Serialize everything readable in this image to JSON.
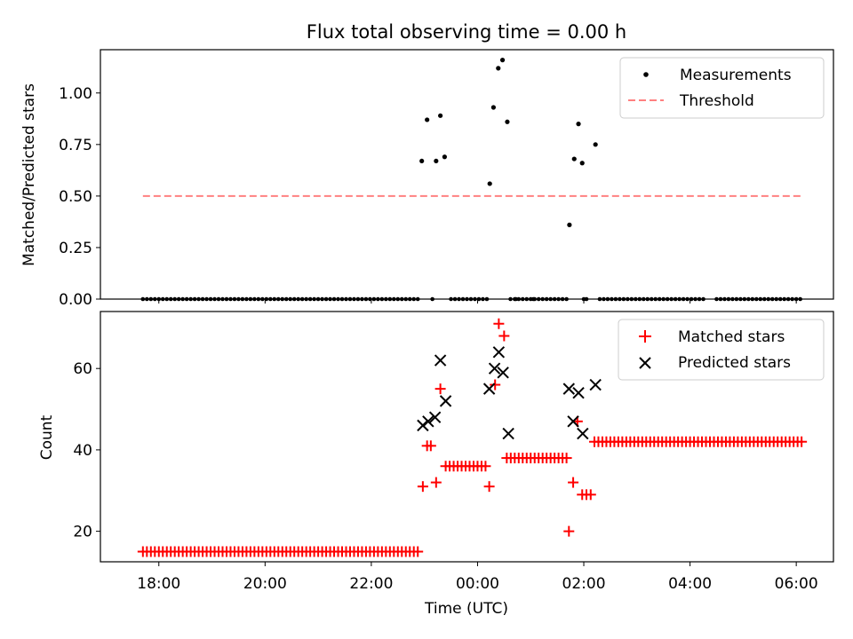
{
  "colors": {
    "measurement": "#000000",
    "threshold": "#ff8080",
    "matched": "#ff0000",
    "predicted": "#000000"
  },
  "chart_data": [
    {
      "type": "scatter",
      "title": "Flux total observing time = 0.00 h",
      "xlabel": "",
      "ylabel": "Matched/Predicted stars",
      "x_unit": "hours since 00:00 UTC",
      "xlim": [
        -7.1,
        6.7
      ],
      "ylim": [
        0.0,
        1.21
      ],
      "yticks": [
        0.0,
        0.25,
        0.5,
        0.75,
        1.0
      ],
      "ytick_labels": [
        "0.00",
        "0.25",
        "0.50",
        "0.75",
        "1.00"
      ],
      "legend_position": "top-right",
      "legend": [
        "Measurements",
        "Threshold"
      ],
      "threshold": {
        "name": "Threshold",
        "value": 0.5,
        "x_range": [
          -6.3,
          6.1
        ]
      },
      "series": [
        {
          "name": "Measurements",
          "points": [
            [
              -1.05,
              0.67
            ],
            [
              -0.95,
              0.87
            ],
            [
              -0.78,
              0.67
            ],
            [
              -0.7,
              0.89
            ],
            [
              -0.62,
              0.69
            ],
            [
              0.23,
              0.56
            ],
            [
              0.3,
              0.93
            ],
            [
              0.39,
              1.12
            ],
            [
              0.47,
              1.16
            ],
            [
              0.56,
              0.86
            ],
            [
              1.73,
              0.36
            ],
            [
              1.82,
              0.68
            ],
            [
              1.9,
              0.85
            ],
            [
              1.97,
              0.66
            ],
            [
              2.22,
              0.75
            ]
          ],
          "zero_points": {
            "ranges": [
              [
                -6.3,
                -1.1
              ],
              [
                -0.5,
                0.2
              ],
              [
                0.7,
                1.7
              ],
              [
                2.3,
                4.3
              ],
              [
                4.5,
                6.1
              ]
            ],
            "step": 0.075,
            "extra": [
              -0.85,
              0.62,
              0.72,
              1.05,
              2.0,
              2.05
            ]
          }
        }
      ]
    },
    {
      "type": "scatter",
      "title": "",
      "xlabel": "Time (UTC)",
      "ylabel": "Count",
      "x_unit": "hours since 00:00 UTC",
      "xlim": [
        -7.1,
        6.7
      ],
      "ylim": [
        12.5,
        74
      ],
      "yticks": [
        20,
        40,
        60
      ],
      "ytick_labels": [
        "20",
        "40",
        "60"
      ],
      "xticks": [
        -6,
        -4,
        -2,
        0,
        2,
        4,
        6
      ],
      "xtick_labels": [
        "18:00",
        "20:00",
        "22:00",
        "00:00",
        "02:00",
        "04:00",
        "06:00"
      ],
      "legend_position": "top-right",
      "legend": [
        "Matched stars",
        "Predicted stars"
      ],
      "series": [
        {
          "name": "Matched stars",
          "marker": "plus",
          "runs": [
            {
              "value": 15,
              "from": -6.3,
              "to": -1.1
            },
            {
              "value": 36,
              "from": -0.6,
              "to": 0.2
            },
            {
              "value": 38,
              "from": 0.55,
              "to": 1.7
            },
            {
              "value": 42,
              "from": 2.2,
              "to": 6.1
            }
          ],
          "points": [
            [
              -1.03,
              31
            ],
            [
              -0.95,
              41
            ],
            [
              -0.88,
              41
            ],
            [
              -0.78,
              32
            ],
            [
              -0.7,
              55
            ],
            [
              0.22,
              31
            ],
            [
              0.33,
              56
            ],
            [
              0.4,
              71
            ],
            [
              0.5,
              68
            ],
            [
              1.72,
              20
            ],
            [
              1.8,
              32
            ],
            [
              1.88,
              47
            ],
            [
              1.97,
              29
            ],
            [
              2.05,
              29
            ],
            [
              2.13,
              29
            ]
          ]
        },
        {
          "name": "Predicted stars",
          "marker": "x",
          "points": [
            [
              -1.03,
              46
            ],
            [
              -0.93,
              47
            ],
            [
              -0.8,
              48
            ],
            [
              -0.7,
              62
            ],
            [
              -0.6,
              52
            ],
            [
              0.22,
              55
            ],
            [
              0.32,
              60
            ],
            [
              0.4,
              64
            ],
            [
              0.48,
              59
            ],
            [
              0.58,
              44
            ],
            [
              1.72,
              55
            ],
            [
              1.8,
              47
            ],
            [
              1.9,
              54
            ],
            [
              1.98,
              44
            ],
            [
              2.22,
              56
            ]
          ]
        }
      ]
    }
  ]
}
